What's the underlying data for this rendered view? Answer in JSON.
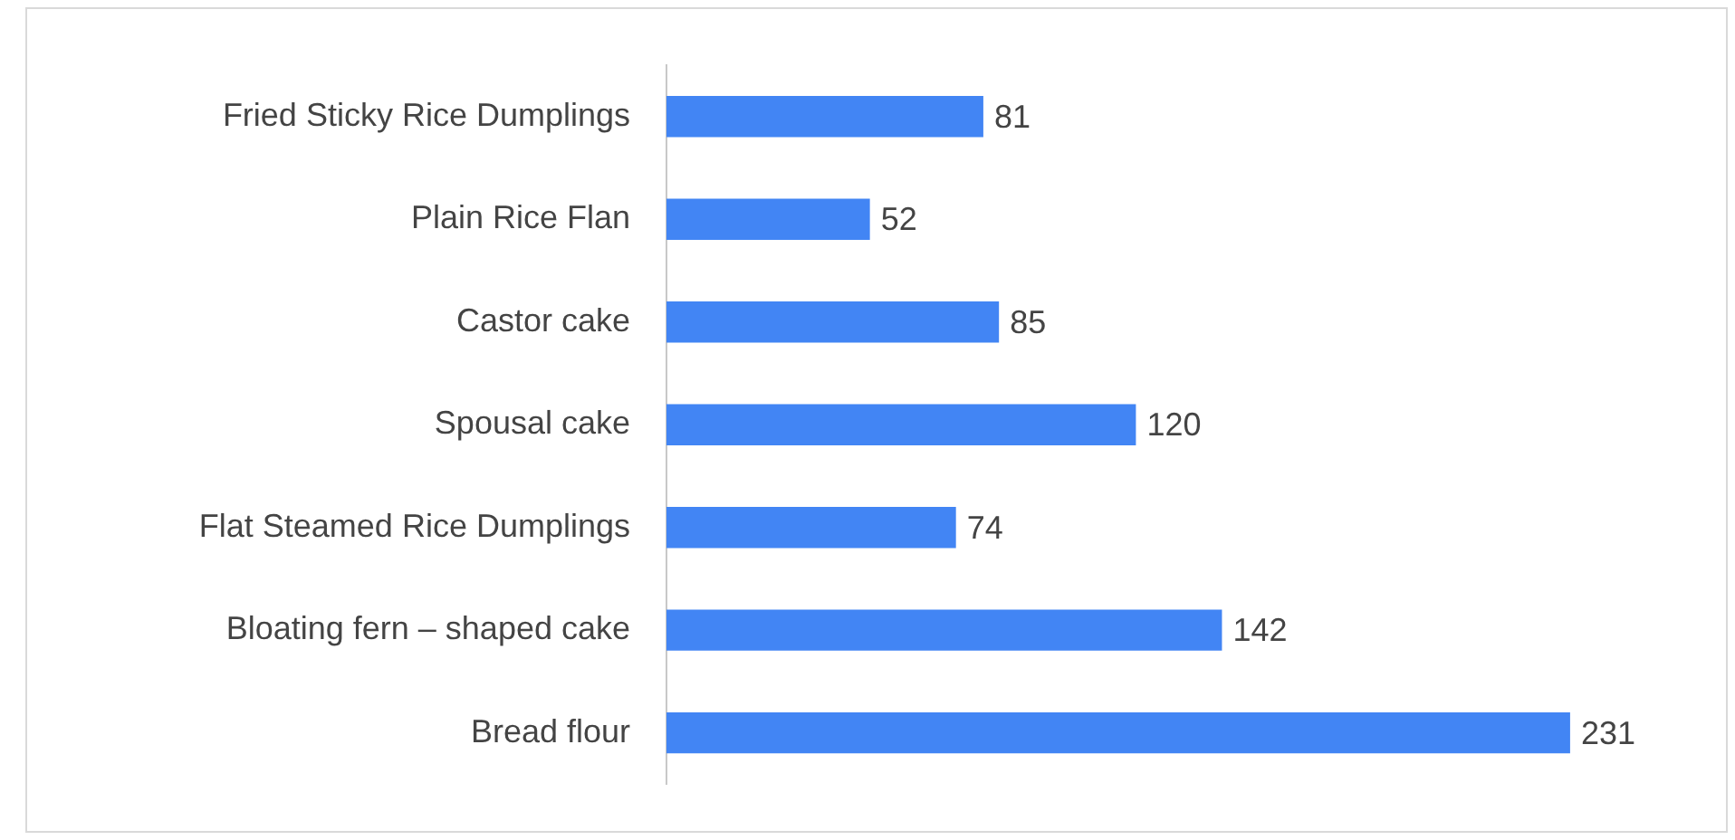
{
  "chart_data": {
    "type": "bar",
    "orientation": "horizontal",
    "categories": [
      "Fried Sticky Rice Dumplings",
      "Plain Rice Flan",
      "Castor cake",
      "Spousal cake",
      "Flat Steamed Rice Dumplings",
      "Bloating fern – shaped cake",
      "Bread flour"
    ],
    "values": [
      81,
      52,
      85,
      120,
      74,
      142,
      231
    ],
    "color": "#4285f4",
    "data_labels": true,
    "legend": false
  }
}
